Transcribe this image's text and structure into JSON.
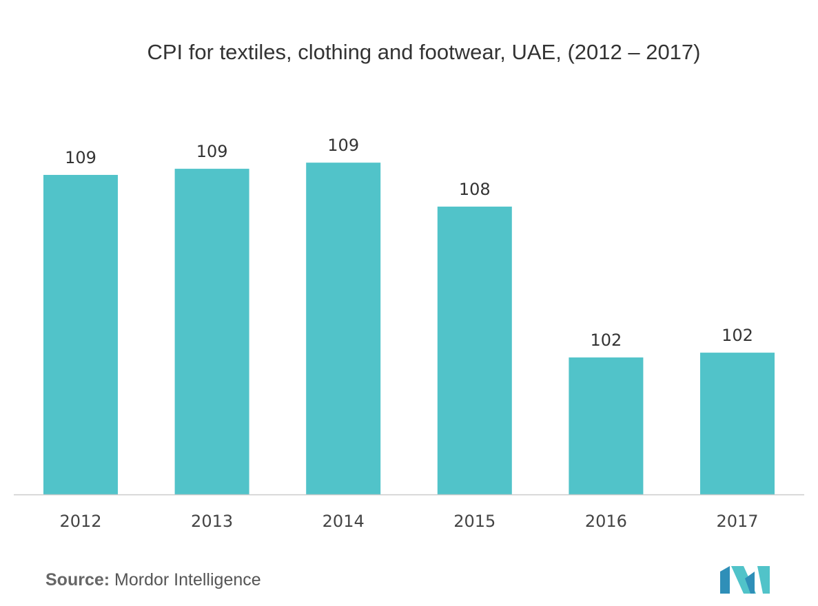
{
  "chart_data": {
    "type": "bar",
    "title": "CPI for textiles, clothing and footwear, UAE, (2012 – 2017)",
    "categories": [
      "2012",
      "2013",
      "2014",
      "2015",
      "2016",
      "2017"
    ],
    "values": [
      108.84,
      109.07,
      109.3,
      107.65,
      101.99,
      102.17
    ],
    "data_labels": [
      "109",
      "109",
      "109",
      "108",
      "102",
      "102"
    ],
    "xlabel": "",
    "ylabel": "",
    "ylim": [
      96.85,
      110.5
    ],
    "grid": false,
    "legend": "none",
    "bar_color": "#51c3c9"
  },
  "source": {
    "label": "Source:",
    "text": "Mordor Intelligence"
  },
  "logo": {
    "colors": [
      "#2f8fb8",
      "#51c3c9"
    ]
  }
}
